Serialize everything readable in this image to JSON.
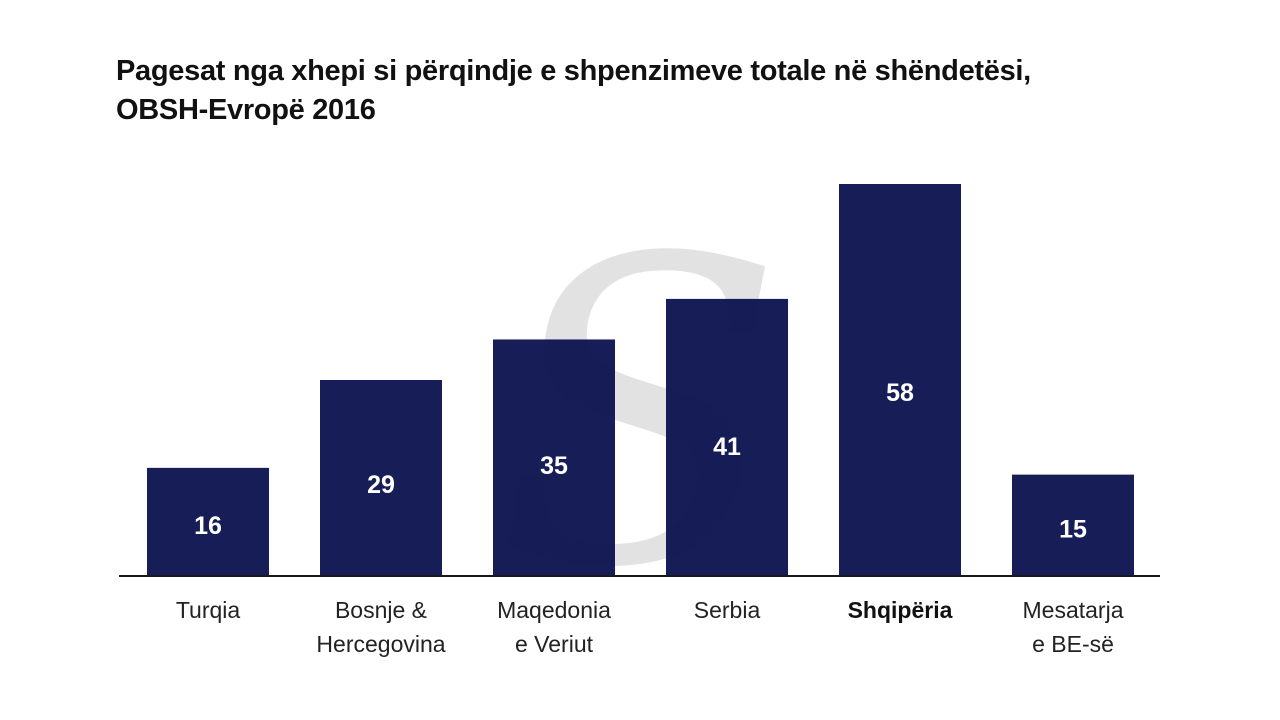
{
  "title": {
    "line1": "Pagesat nga xhepi si përqindje e shpenzimeve totale në shëndetësi,",
    "line2": "OBSH-Evropë 2016"
  },
  "watermark": {
    "glyph": "S"
  },
  "colors": {
    "bar": "#0e1450",
    "value_text": "#ffffff",
    "axis": "#1a1a1a",
    "label_text": "#222222",
    "watermark": "#d9d9d9"
  },
  "chart_data": {
    "type": "bar",
    "title": "Pagesat nga xhepi si përqindje e shpenzimeve totale në shëndetësi, OBSH-Evropë 2016",
    "xlabel": "",
    "ylabel": "",
    "ylim": [
      0,
      58
    ],
    "grid": false,
    "legend": "none",
    "categories": [
      [
        "Turqia"
      ],
      [
        "Bosnje &",
        "Hercegovina"
      ],
      [
        "Maqedonia",
        "e Veriut"
      ],
      [
        "Serbia"
      ],
      [
        "Shqipëria"
      ],
      [
        "Mesatarja",
        "e BE-së"
      ]
    ],
    "values": [
      16,
      29,
      35,
      41,
      58,
      15
    ],
    "highlight_index": 4
  }
}
